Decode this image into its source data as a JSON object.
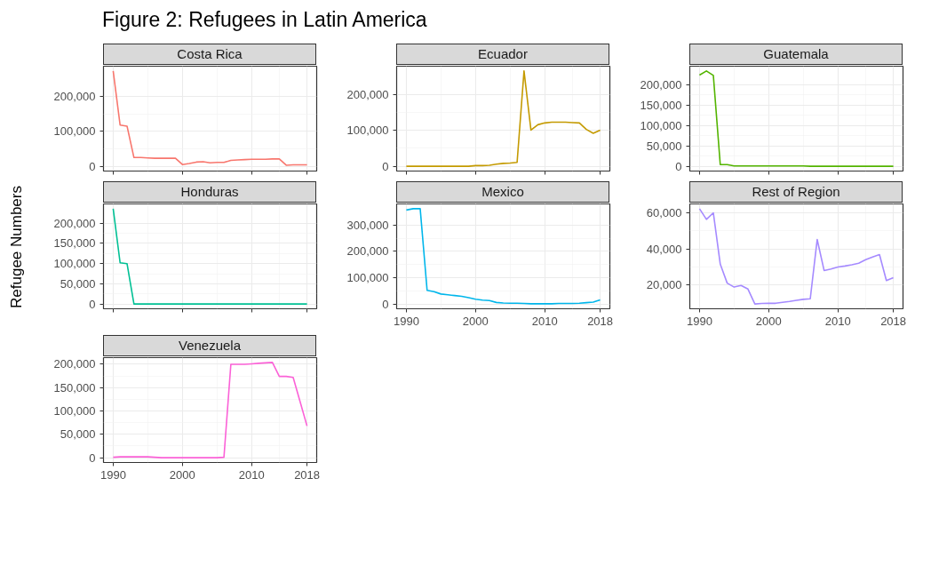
{
  "chart_data": [
    {
      "type": "line",
      "title": "Costa Rica",
      "annotations": [
        "Figure 2: Refugees in Latin America"
      ],
      "x": [
        1990,
        1991,
        1992,
        1993,
        1994,
        1995,
        1996,
        1997,
        1998,
        1999,
        2000,
        2001,
        2002,
        2003,
        2004,
        2005,
        2006,
        2007,
        2008,
        2009,
        2010,
        2011,
        2012,
        2013,
        2014,
        2015,
        2016,
        2017,
        2018
      ],
      "series": [
        {
          "color": "#f8766d",
          "values": [
            273000,
            118000,
            115000,
            25000,
            25000,
            24000,
            23000,
            23000,
            23000,
            23000,
            5000,
            8000,
            12000,
            13000,
            10000,
            11000,
            11000,
            17000,
            18000,
            19000,
            20000,
            20000,
            20000,
            21000,
            21000,
            3000,
            4000,
            4000,
            4000
          ]
        }
      ],
      "xlim": [
        1988.6,
        2019.4
      ],
      "xticks": [
        1990,
        2000,
        2010,
        2018
      ],
      "ylim": [
        -13650,
        286650
      ],
      "yticks": [
        0,
        {
          "value": 100000,
          "label": "100,000"
        },
        {
          "value": 200000,
          "label": "200,000"
        }
      ],
      "grid": true,
      "tick_labels": "y"
    },
    {
      "type": "line",
      "title": "Ecuador",
      "x": [
        1990,
        1991,
        1992,
        1993,
        1994,
        1995,
        1996,
        1997,
        1998,
        1999,
        2000,
        2001,
        2002,
        2003,
        2004,
        2005,
        2006,
        2007,
        2008,
        2009,
        2010,
        2011,
        2012,
        2013,
        2014,
        2015,
        2016,
        2017,
        2018
      ],
      "series": [
        {
          "color": "#c49a00",
          "values": [
            0,
            0,
            0,
            0,
            0,
            0,
            0,
            0,
            0,
            0,
            2000,
            2000,
            3000,
            6000,
            8000,
            9000,
            11000,
            266000,
            101000,
            116000,
            121000,
            123000,
            123000,
            123000,
            122000,
            121000,
            103000,
            92000,
            101000
          ]
        }
      ],
      "xlim": [
        1988.6,
        2019.4
      ],
      "xticks": [
        1990,
        2000,
        2010,
        2018
      ],
      "ylim": [
        -13300,
        279300
      ],
      "yticks": [
        0,
        {
          "value": 100000,
          "label": "100,000"
        },
        {
          "value": 200000,
          "label": "200,000"
        }
      ],
      "grid": true,
      "tick_labels": "y"
    },
    {
      "type": "line",
      "title": "Guatemala",
      "x": [
        1990,
        1991,
        1992,
        1993,
        1994,
        1995,
        1996,
        1997,
        1998,
        1999,
        2000,
        2001,
        2002,
        2003,
        2004,
        2005,
        2006,
        2007,
        2008,
        2009,
        2010,
        2011,
        2012,
        2013,
        2014,
        2015,
        2016,
        2017,
        2018
      ],
      "series": [
        {
          "color": "#53b400",
          "values": [
            224000,
            234000,
            223000,
            4000,
            4000,
            1000,
            1000,
            1000,
            1000,
            1000,
            1000,
            1000,
            1000,
            1000,
            1000,
            1000,
            0,
            0,
            0,
            0,
            0,
            0,
            0,
            0,
            0,
            0,
            0,
            0,
            0
          ]
        }
      ],
      "xlim": [
        1988.6,
        2019.4
      ],
      "xticks": [
        1990,
        2000,
        2010,
        2018
      ],
      "ylim": [
        -11700,
        245700
      ],
      "yticks": [
        0,
        {
          "value": 50000,
          "label": "50,000"
        },
        {
          "value": 100000,
          "label": "100,000"
        },
        {
          "value": 150000,
          "label": "150,000"
        },
        {
          "value": 200000,
          "label": "200,000"
        }
      ],
      "grid": true,
      "tick_labels": "y"
    },
    {
      "type": "line",
      "title": "Honduras",
      "ylabel": "Refugee Numbers",
      "x": [
        1990,
        1991,
        1992,
        1993,
        1994,
        1995,
        1996,
        1997,
        1998,
        1999,
        2000,
        2001,
        2002,
        2003,
        2004,
        2005,
        2006,
        2007,
        2008,
        2009,
        2010,
        2011,
        2012,
        2013,
        2014,
        2015,
        2016,
        2017,
        2018
      ],
      "series": [
        {
          "color": "#00c094",
          "values": [
            236000,
            102000,
            100000,
            0,
            0,
            0,
            0,
            0,
            0,
            0,
            0,
            0,
            0,
            0,
            0,
            0,
            0,
            0,
            0,
            0,
            0,
            0,
            0,
            0,
            0,
            0,
            0,
            0,
            0
          ]
        }
      ],
      "xlim": [
        1988.6,
        2019.4
      ],
      "xticks": [
        1990,
        2000,
        2010,
        2018
      ],
      "ylim": [
        -11800,
        247800
      ],
      "yticks": [
        0,
        {
          "value": 50000,
          "label": "50,000"
        },
        {
          "value": 100000,
          "label": "100,000"
        },
        {
          "value": 150000,
          "label": "150,000"
        },
        {
          "value": 200000,
          "label": "200,000"
        }
      ],
      "grid": true,
      "tick_labels": "y"
    },
    {
      "type": "line",
      "title": "Mexico",
      "x": [
        1990,
        1991,
        1992,
        1993,
        1994,
        1995,
        1996,
        1997,
        1998,
        1999,
        2000,
        2001,
        2002,
        2003,
        2004,
        2005,
        2006,
        2007,
        2008,
        2009,
        2010,
        2011,
        2012,
        2013,
        2014,
        2015,
        2016,
        2017,
        2018
      ],
      "series": [
        {
          "color": "#00b6eb",
          "values": [
            357000,
            362000,
            362000,
            52000,
            47000,
            38000,
            35000,
            32000,
            29000,
            24000,
            18000,
            15000,
            13000,
            6000,
            4000,
            3000,
            3000,
            2000,
            1000,
            1000,
            1000,
            1000,
            2000,
            2000,
            2000,
            3000,
            5000,
            7000,
            16000
          ]
        }
      ],
      "xlim": [
        1988.6,
        2019.4
      ],
      "xticks": [
        1990,
        2000,
        2010,
        2018
      ],
      "ylim": [
        -18100,
        380100
      ],
      "yticks": [
        0,
        {
          "value": 100000,
          "label": "100,000"
        },
        {
          "value": 200000,
          "label": "200,000"
        },
        {
          "value": 300000,
          "label": "300,000"
        }
      ],
      "grid": true
    },
    {
      "type": "line",
      "title": "Rest of Region",
      "x": [
        1990,
        1991,
        1992,
        1993,
        1994,
        1995,
        1996,
        1997,
        1998,
        1999,
        2000,
        2001,
        2002,
        2003,
        2004,
        2005,
        2006,
        2007,
        2008,
        2009,
        2010,
        2011,
        2012,
        2013,
        2014,
        2015,
        2016,
        2017,
        2018
      ],
      "series": [
        {
          "color": "#a58aff",
          "values": [
            62300,
            56400,
            60000,
            31500,
            21000,
            18800,
            19700,
            17700,
            9400,
            9700,
            9800,
            9800,
            10300,
            10800,
            11400,
            12000,
            12300,
            45200,
            28000,
            28800,
            29900,
            30500,
            31200,
            32000,
            34000,
            35500,
            36800,
            22400,
            24000
          ]
        }
      ],
      "xlim": [
        1988.6,
        2019.4
      ],
      "xticks": [
        1990,
        2000,
        2010,
        2018
      ],
      "ylim": [
        6755,
        64945
      ],
      "yticks": [
        {
          "value": 20000,
          "label": "20,000"
        },
        {
          "value": 40000,
          "label": "40,000"
        },
        {
          "value": 60000,
          "label": "60,000"
        }
      ],
      "grid": true
    },
    {
      "type": "line",
      "title": "Venezuela",
      "x": [
        1990,
        1991,
        1992,
        1993,
        1994,
        1995,
        1996,
        1997,
        1998,
        1999,
        2000,
        2001,
        2002,
        2003,
        2004,
        2005,
        2006,
        2007,
        2008,
        2009,
        2010,
        2011,
        2012,
        2013,
        2014,
        2015,
        2016,
        2017,
        2018
      ],
      "series": [
        {
          "color": "#fb61d7",
          "values": [
            1000,
            2000,
            2000,
            2000,
            2000,
            2000,
            1000,
            0,
            0,
            0,
            0,
            0,
            0,
            0,
            0,
            0,
            1000,
            200000,
            200000,
            200000,
            201000,
            202000,
            203000,
            204000,
            174000,
            174000,
            172000,
            120000,
            68000
          ]
        }
      ],
      "xlim": [
        1988.6,
        2019.4
      ],
      "xticks": [
        1990,
        2000,
        2010,
        2018
      ],
      "ylim": [
        -10200,
        214200
      ],
      "yticks": [
        0,
        {
          "value": 50000,
          "label": "50,000"
        },
        {
          "value": 100000,
          "label": "100,000"
        },
        {
          "value": 150000,
          "label": "150,000"
        },
        {
          "value": 200000,
          "label": "200,000"
        }
      ],
      "grid": true
    }
  ]
}
